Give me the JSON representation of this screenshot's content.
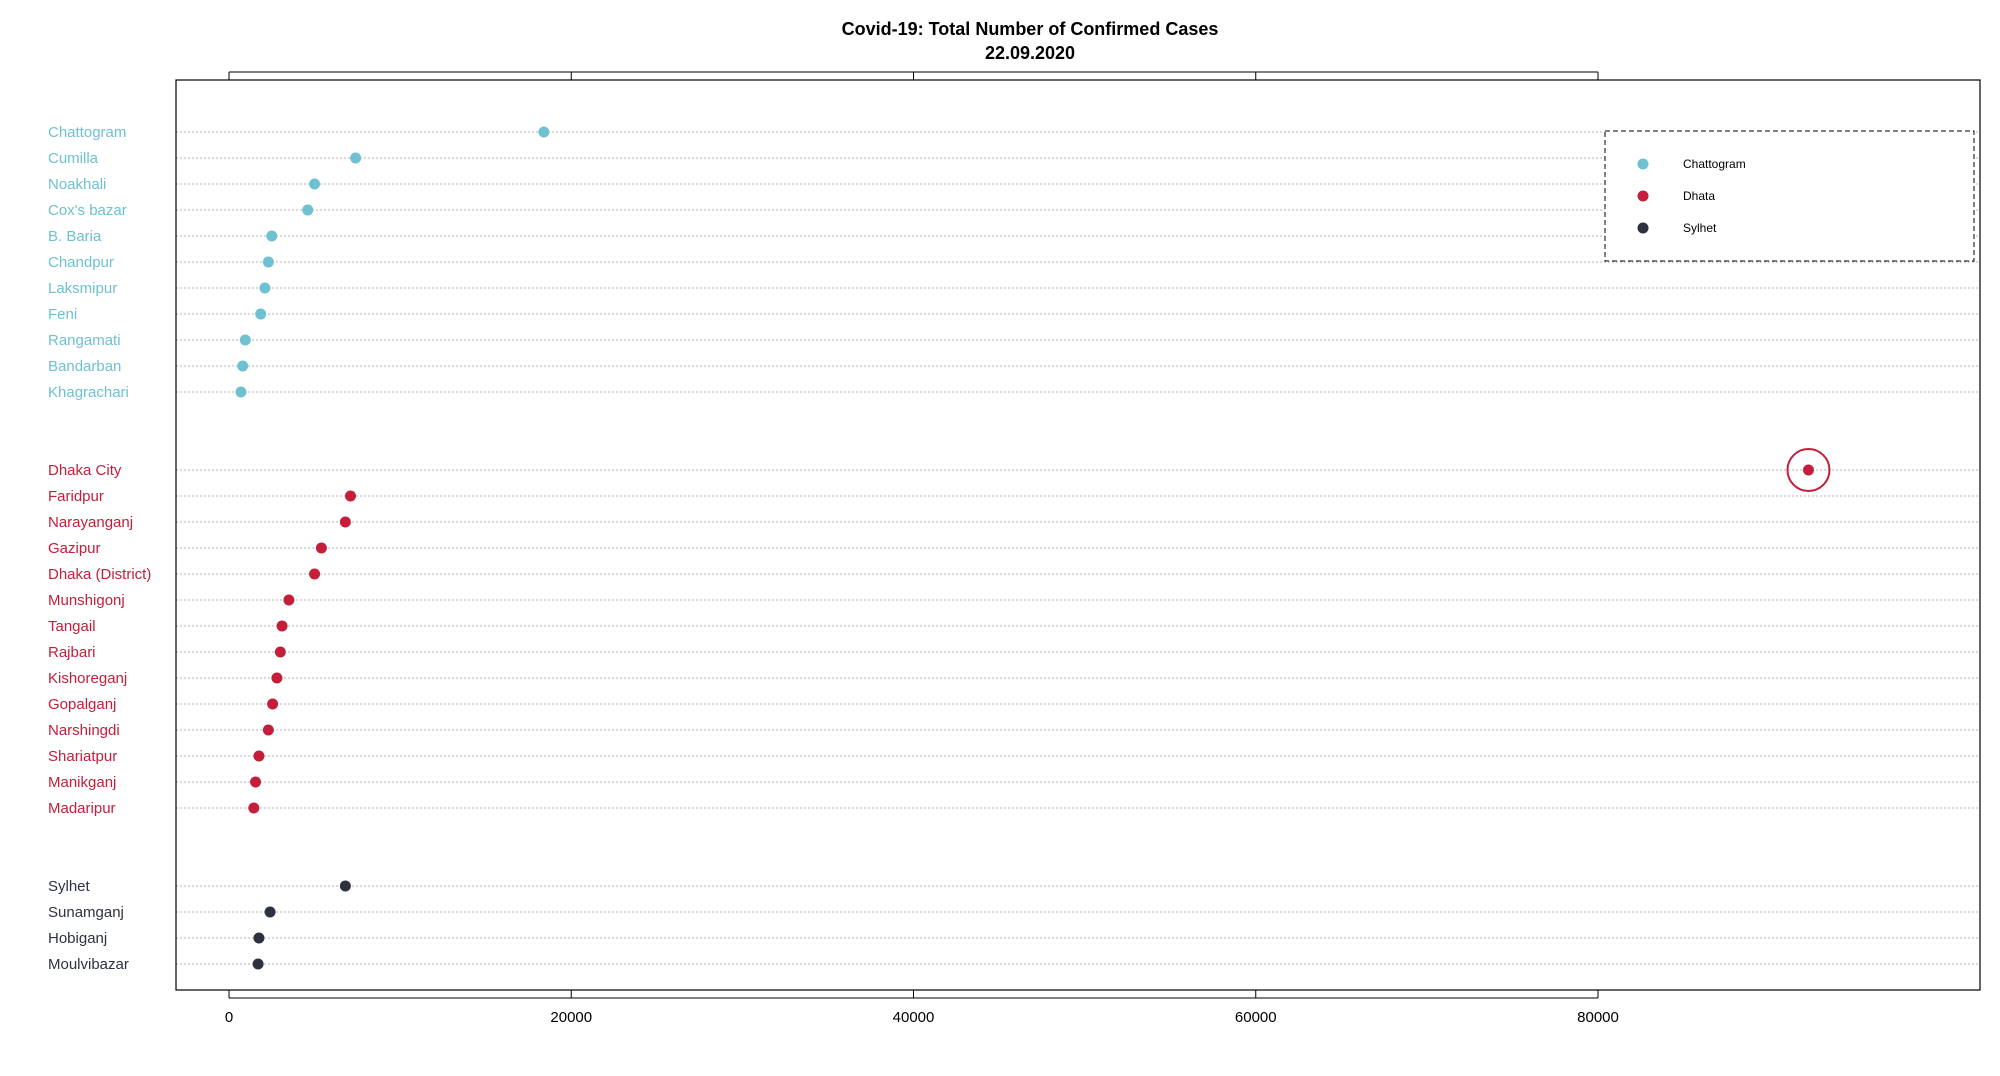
{
  "chart_data": {
    "type": "scatter",
    "title": "Covid-19: Total Number of Confirmed Cases",
    "subtitle": "22.09.2020",
    "xlabel": "",
    "ylabel": "",
    "xlim": [
      -3000,
      95000
    ],
    "x_ticks": [
      0,
      20000,
      40000,
      60000,
      80000
    ],
    "x_tick_labels": [
      "0",
      "20000",
      "40000",
      "60000",
      "80000"
    ],
    "x_axis_top_ticks": true,
    "grid": "dotted horizontal per row",
    "groups": [
      {
        "name": "Chattogram",
        "color": "#6EC1D1",
        "districts": [
          "Chattogram",
          "Cumilla",
          "Noakhali",
          "Cox's bazar",
          "B. Baria",
          "Chandpur",
          "Laksmipur",
          "Feni",
          "Rangamati",
          "Bandarban",
          "Khagrachari"
        ],
        "values": [
          18400,
          7400,
          5000,
          4600,
          2500,
          2300,
          2100,
          1850,
          950,
          800,
          700
        ]
      },
      {
        "name": "Dhata",
        "color": "#C41E3A",
        "districts": [
          "Dhaka City",
          "Faridpur",
          "Narayanganj",
          "Gazipur",
          "Dhaka (District)",
          "Munshigonj",
          "Tangail",
          "Rajbari",
          "Kishoreganj",
          "Gopalganj",
          "Narshingdi",
          "Shariatpur",
          "Manikganj",
          "Madaripur"
        ],
        "values": [
          92300,
          7100,
          6800,
          5400,
          5000,
          3500,
          3100,
          3000,
          2800,
          2550,
          2300,
          1750,
          1550,
          1450
        ]
      },
      {
        "name": "Sylhet",
        "color": "#2E3140",
        "districts": [
          "Sylhet",
          "Sunamganj",
          "Hobiganj",
          "Moulvibazar"
        ],
        "values": [
          6800,
          2400,
          1750,
          1700
        ]
      }
    ],
    "highlight": {
      "district": "Dhaka City",
      "marker": "circle"
    },
    "legend": {
      "position": "top-right",
      "border": "dashed",
      "entries": [
        {
          "label": "Chattogram",
          "color": "#6EC1D1"
        },
        {
          "label": "Dhata",
          "color": "#C41E3A"
        },
        {
          "label": "Sylhet",
          "color": "#2E3140"
        }
      ]
    }
  }
}
